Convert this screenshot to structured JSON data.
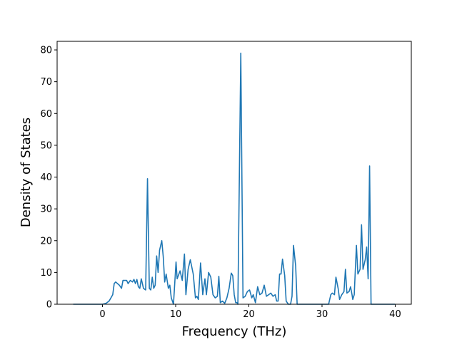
{
  "chart_data": {
    "type": "line",
    "xlabel": "Frequency (THz)",
    "ylabel": "Density of States",
    "xlim": [
      -6.2,
      42.2
    ],
    "ylim": [
      0,
      82.7
    ],
    "xticks": [
      0,
      10,
      20,
      30,
      40
    ],
    "yticks": [
      0,
      10,
      20,
      30,
      40,
      50,
      60,
      70,
      80
    ],
    "series": [
      {
        "color": "#1f77b4",
        "x": [
          -4,
          0,
          0.5,
          0.9,
          1.4,
          1.6,
          1.8,
          2.3,
          2.6,
          2.8,
          3.3,
          3.5,
          3.8,
          4.1,
          4.3,
          4.5,
          4.7,
          4.9,
          5.1,
          5.3,
          5.6,
          5.9,
          6.15,
          6.4,
          6.6,
          6.8,
          7.0,
          7.2,
          7.4,
          7.6,
          7.8,
          8.1,
          8.3,
          8.5,
          8.7,
          9.0,
          9.2,
          9.4,
          9.7,
          10.05,
          10.2,
          10.6,
          10.9,
          11.2,
          11.4,
          11.7,
          12.0,
          12.4,
          12.7,
          12.9,
          13.1,
          13.4,
          13.7,
          14.0,
          14.2,
          14.5,
          14.8,
          15.1,
          15.4,
          15.7,
          15.9,
          16.1,
          16.4,
          16.7,
          17.0,
          17.3,
          17.6,
          17.8,
          18.0,
          18.2,
          18.4,
          18.5,
          18.9,
          19.2,
          19.5,
          19.8,
          20.1,
          20.4,
          20.6,
          20.9,
          21.2,
          21.5,
          21.8,
          22.1,
          22.4,
          22.7,
          23.0,
          23.3,
          23.6,
          23.8,
          24.0,
          24.2,
          24.4,
          24.6,
          24.9,
          25.1,
          25.4,
          25.7,
          25.9,
          26.1,
          26.4,
          26.6,
          30.9,
          31.2,
          31.4,
          31.7,
          31.9,
          32.2,
          32.4,
          32.7,
          33.0,
          33.2,
          33.4,
          33.7,
          33.9,
          34.1,
          34.2,
          34.4,
          34.7,
          34.9,
          35.2,
          35.4,
          35.6,
          35.9,
          36.1,
          36.3,
          36.5,
          36.7,
          40
        ],
        "values": [
          0,
          0,
          0.3,
          1,
          3,
          6.5,
          7,
          6,
          5,
          7.5,
          7.5,
          6.5,
          7.5,
          7,
          7.8,
          6.5,
          7.8,
          5.5,
          5,
          8,
          5,
          4.5,
          39.5,
          5,
          4.5,
          8.5,
          5,
          6,
          15.2,
          10,
          17,
          20,
          15,
          7,
          9.5,
          5,
          6,
          2,
          0,
          13.3,
          8,
          10.5,
          7.5,
          15.8,
          3,
          11,
          14,
          9.5,
          2,
          2.5,
          1.5,
          13,
          3,
          8,
          3,
          10,
          8.5,
          3,
          2,
          2.5,
          8.8,
          0.5,
          1,
          0.3,
          2,
          5,
          9.8,
          9,
          3,
          0.5,
          0.5,
          0,
          79,
          2,
          2.5,
          4,
          4.5,
          2,
          3,
          0.5,
          5.5,
          3,
          3.5,
          6,
          2.5,
          3,
          3.5,
          2.5,
          3,
          1,
          1,
          9.5,
          9.5,
          14.2,
          9,
          1,
          0,
          0,
          2.5,
          18.5,
          12,
          0,
          0,
          3,
          3.5,
          3,
          8.5,
          5,
          1.5,
          3,
          4,
          11,
          3.5,
          4,
          5.5,
          3,
          1.5,
          3,
          18.5,
          9.5,
          11,
          25,
          11,
          14,
          18,
          8,
          43.5,
          0,
          0
        ]
      }
    ]
  }
}
